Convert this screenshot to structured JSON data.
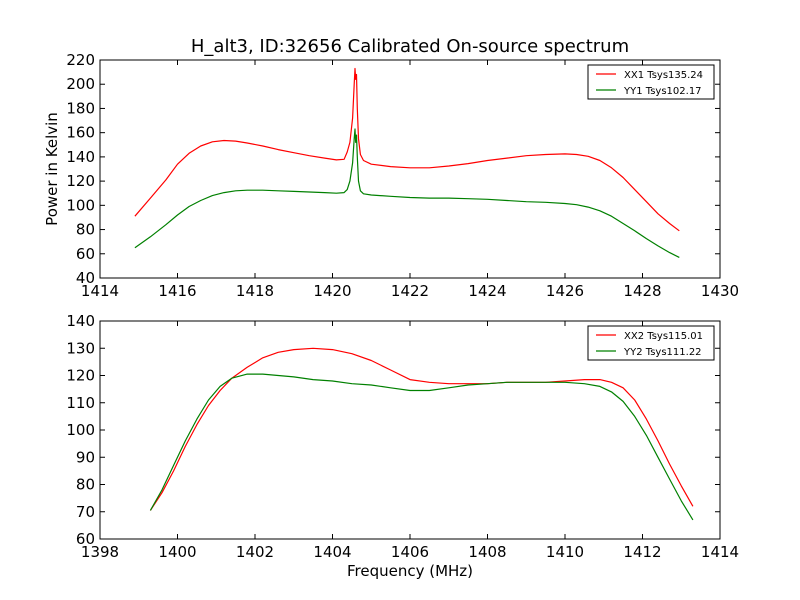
{
  "figure": {
    "title": "H_alt3, ID:32656 Calibrated On-source spectrum"
  },
  "chart_data": [
    {
      "type": "line",
      "title": "H_alt3, ID:32656 Calibrated On-source spectrum",
      "xlabel": "",
      "ylabel": "Power in Kelvin",
      "xlim": [
        1414,
        1430
      ],
      "ylim": [
        40,
        220
      ],
      "xticks": [
        1414,
        1416,
        1418,
        1420,
        1422,
        1424,
        1426,
        1428,
        1430
      ],
      "yticks": [
        40,
        60,
        80,
        100,
        120,
        140,
        160,
        180,
        200,
        220
      ],
      "legend_position": "top-right",
      "grid": false,
      "series": [
        {
          "name": "XX1 Tsys135.24",
          "color": "#ff0000",
          "x": [
            1414.9,
            1415.3,
            1415.7,
            1416.0,
            1416.3,
            1416.6,
            1416.9,
            1417.2,
            1417.5,
            1417.8,
            1418.2,
            1418.6,
            1419.0,
            1419.4,
            1419.8,
            1420.1,
            1420.3,
            1420.38,
            1420.45,
            1420.52,
            1420.56,
            1420.58,
            1420.6,
            1420.62,
            1420.64,
            1420.67,
            1420.72,
            1420.8,
            1421.0,
            1421.5,
            1422.0,
            1422.5,
            1423.0,
            1423.5,
            1424.0,
            1424.5,
            1425.0,
            1425.5,
            1426.0,
            1426.3,
            1426.6,
            1426.9,
            1427.2,
            1427.5,
            1427.8,
            1428.1,
            1428.4,
            1428.7,
            1428.95
          ],
          "y": [
            91,
            106,
            121,
            134,
            143,
            149,
            152.5,
            153.5,
            153,
            151.5,
            149,
            146,
            143.5,
            141,
            139,
            137.5,
            138,
            144,
            152,
            172,
            200,
            213,
            204,
            208,
            180,
            155,
            142,
            137,
            134,
            132,
            131,
            131,
            132.5,
            134.5,
            137,
            139,
            141,
            142,
            142.5,
            142,
            140.5,
            137,
            131,
            123,
            113,
            103,
            93,
            85,
            79
          ]
        },
        {
          "name": "YY1 Tsys102.17",
          "color": "#008000",
          "x": [
            1414.9,
            1415.3,
            1415.7,
            1416.0,
            1416.3,
            1416.6,
            1416.9,
            1417.2,
            1417.5,
            1417.8,
            1418.2,
            1418.6,
            1419.0,
            1419.4,
            1419.8,
            1420.1,
            1420.3,
            1420.38,
            1420.45,
            1420.52,
            1420.56,
            1420.58,
            1420.6,
            1420.62,
            1420.64,
            1420.67,
            1420.72,
            1420.8,
            1421.0,
            1421.5,
            1422.0,
            1422.5,
            1423.0,
            1423.5,
            1424.0,
            1424.5,
            1425.0,
            1425.5,
            1426.0,
            1426.3,
            1426.6,
            1426.9,
            1427.2,
            1427.5,
            1427.8,
            1428.1,
            1428.4,
            1428.7,
            1428.95
          ],
          "y": [
            65,
            74,
            84,
            92,
            99,
            104,
            108,
            110.5,
            112,
            112.5,
            112.5,
            112,
            111.5,
            111,
            110.5,
            110,
            110.5,
            113,
            120,
            135,
            155,
            163,
            152,
            158,
            140,
            120,
            112,
            109.5,
            108.5,
            107.5,
            106.5,
            106,
            106,
            105.5,
            105,
            104,
            103,
            102.5,
            101.5,
            100.5,
            98.5,
            95.5,
            91,
            85,
            79,
            72.5,
            66.5,
            61,
            57
          ]
        }
      ]
    },
    {
      "type": "line",
      "title": "",
      "xlabel": "Frequency (MHz)",
      "ylabel": "",
      "xlim": [
        1398,
        1414
      ],
      "ylim": [
        60,
        140
      ],
      "xticks": [
        1398,
        1400,
        1402,
        1404,
        1406,
        1408,
        1410,
        1412,
        1414
      ],
      "yticks": [
        60,
        70,
        80,
        90,
        100,
        110,
        120,
        130,
        140
      ],
      "legend_position": "top-right",
      "grid": false,
      "series": [
        {
          "name": "XX2 Tsys115.01",
          "color": "#ff0000",
          "x": [
            1399.3,
            1399.6,
            1399.9,
            1400.2,
            1400.5,
            1400.8,
            1401.1,
            1401.4,
            1401.8,
            1402.2,
            1402.6,
            1403.0,
            1403.5,
            1404.0,
            1404.5,
            1405.0,
            1405.5,
            1406.0,
            1406.5,
            1407.0,
            1407.5,
            1408.0,
            1408.5,
            1409.0,
            1409.5,
            1410.0,
            1410.5,
            1410.9,
            1411.2,
            1411.5,
            1411.8,
            1412.1,
            1412.4,
            1412.7,
            1413.0,
            1413.3
          ],
          "y": [
            70.5,
            77,
            85,
            94,
            102,
            109,
            114.5,
            119,
            123,
            126.5,
            128.5,
            129.5,
            130,
            129.5,
            128,
            125.5,
            122,
            118.5,
            117.5,
            117,
            117,
            117,
            117.5,
            117.5,
            117.5,
            118,
            118.5,
            118.5,
            117.5,
            115.5,
            111,
            104,
            96,
            87.5,
            79.5,
            72
          ]
        },
        {
          "name": "YY2 Tsys111.22",
          "color": "#008000",
          "x": [
            1399.3,
            1399.6,
            1399.9,
            1400.2,
            1400.5,
            1400.8,
            1401.1,
            1401.4,
            1401.8,
            1402.2,
            1402.6,
            1403.0,
            1403.5,
            1404.0,
            1404.5,
            1405.0,
            1405.5,
            1406.0,
            1406.5,
            1407.0,
            1407.5,
            1408.0,
            1408.5,
            1409.0,
            1409.5,
            1410.0,
            1410.5,
            1410.9,
            1411.2,
            1411.5,
            1411.8,
            1412.1,
            1412.4,
            1412.7,
            1413.0,
            1413.3
          ],
          "y": [
            70.5,
            78,
            87,
            96,
            104,
            111,
            116,
            119,
            120.5,
            120.5,
            120,
            119.5,
            118.5,
            118,
            117,
            116.5,
            115.5,
            114.5,
            114.5,
            115.5,
            116.5,
            117,
            117.5,
            117.5,
            117.5,
            117.5,
            117,
            116,
            114,
            110.5,
            105,
            98,
            90,
            82,
            74,
            67
          ]
        }
      ]
    }
  ]
}
